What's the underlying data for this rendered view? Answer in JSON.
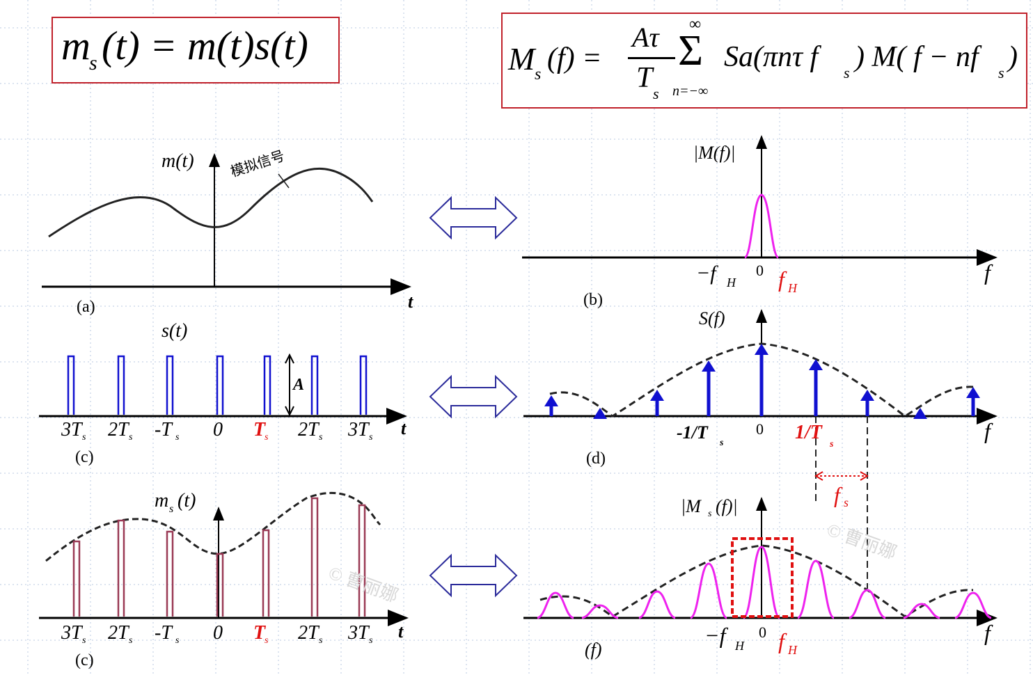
{
  "formulas": {
    "left": "m_s(t) = m(t)s(t)",
    "left_parts": [
      "m",
      "s",
      "(t) = m(t)s(t)"
    ],
    "right": "M_s(f) = Aτ/T_s Σ_{n=-∞}^{∞} Sa(πnτ f_s) M(f − nf_s)",
    "right_parts": {
      "lhs": "M",
      "lhs_sub": "s",
      "lhs_rest": "(f) =",
      "frac_num": "Aτ",
      "frac_den": "T",
      "frac_den_sub": "s",
      "sum_top": "∞",
      "sum": "Σ",
      "sum_bottom": "n=−∞",
      "body": "Sa(πnτ f",
      "body_sub": "s",
      "body2": ") M( f − nf",
      "body2_sub": "s",
      "body3": ")"
    }
  },
  "panels": {
    "a": {
      "label": "(a)",
      "ylabel": "m(t)",
      "xlabel": "t",
      "annotation": "模拟信号"
    },
    "b": {
      "label": "(b)",
      "ylabel": "|M(f)|",
      "xlabel": "f",
      "ticks": [
        "−f",
        "H",
        "0",
        "f",
        "H"
      ]
    },
    "c1": {
      "label": "(c)",
      "ylabel": "s(t)",
      "xlabel": "t",
      "amp": "A",
      "ticks": [
        "3T",
        "2T",
        "-T",
        "0",
        "T",
        "2T",
        "3T"
      ],
      "tick_sub": "s"
    },
    "d": {
      "label": "(d)",
      "ylabel": "S(f)",
      "xlabel": "f",
      "ticks": [
        "-1/T",
        "0",
        "1/T"
      ],
      "tick_sub": "s"
    },
    "c2": {
      "label": "(c)",
      "ylabel": "m",
      "ylabel_sub": "s",
      "ylabel_rest": "(t)",
      "xlabel": "t",
      "ticks": [
        "3T",
        "2T",
        "-T",
        "0",
        "T",
        "2T",
        "3T"
      ],
      "tick_sub": "s"
    },
    "f": {
      "label": "(f)",
      "ylabel": "|M",
      "ylabel_sub": "s",
      "ylabel_rest": "(f)|",
      "xlabel": "f",
      "ticks": [
        "−f",
        "H",
        "0",
        "f",
        "H"
      ],
      "fs_label": "f",
      "fs_sub": "s"
    }
  },
  "watermark": "© 曹丽娜",
  "colors": {
    "border": "#c0202a",
    "blue": "#1010d0",
    "magenta": "#ee22ee",
    "maroon": "#9a3a55",
    "red": "#e01010",
    "arrow": "#2a2a9a"
  }
}
